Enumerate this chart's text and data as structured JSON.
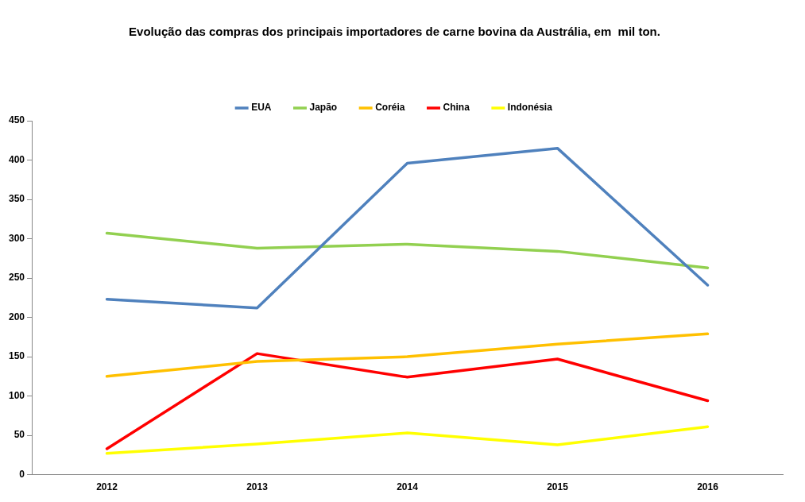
{
  "chart_data": {
    "type": "line",
    "title": "Evolução das compras dos principais importadores de carne bovina da Austrália, em  mil ton.",
    "categories": [
      "2012",
      "2013",
      "2014",
      "2015",
      "2016"
    ],
    "series": [
      {
        "name": "EUA",
        "color": "#4f81bd",
        "values": [
          223,
          212,
          396,
          415,
          241
        ]
      },
      {
        "name": "Japão",
        "color": "#92d050",
        "values": [
          307,
          288,
          293,
          284,
          263
        ]
      },
      {
        "name": "Coréia",
        "color": "#ffc000",
        "values": [
          125,
          144,
          150,
          166,
          179
        ]
      },
      {
        "name": "China",
        "color": "#ff0000",
        "values": [
          33,
          154,
          124,
          147,
          94
        ]
      },
      {
        "name": "Indonésia",
        "color": "#ffff00",
        "values": [
          27,
          39,
          53,
          38,
          61
        ]
      }
    ],
    "ylim": [
      0,
      450
    ],
    "yticks": [
      0,
      50,
      100,
      150,
      200,
      250,
      300,
      350,
      400,
      450
    ],
    "grid": false,
    "legend": "top",
    "marker": "none",
    "line_style": "solid"
  }
}
